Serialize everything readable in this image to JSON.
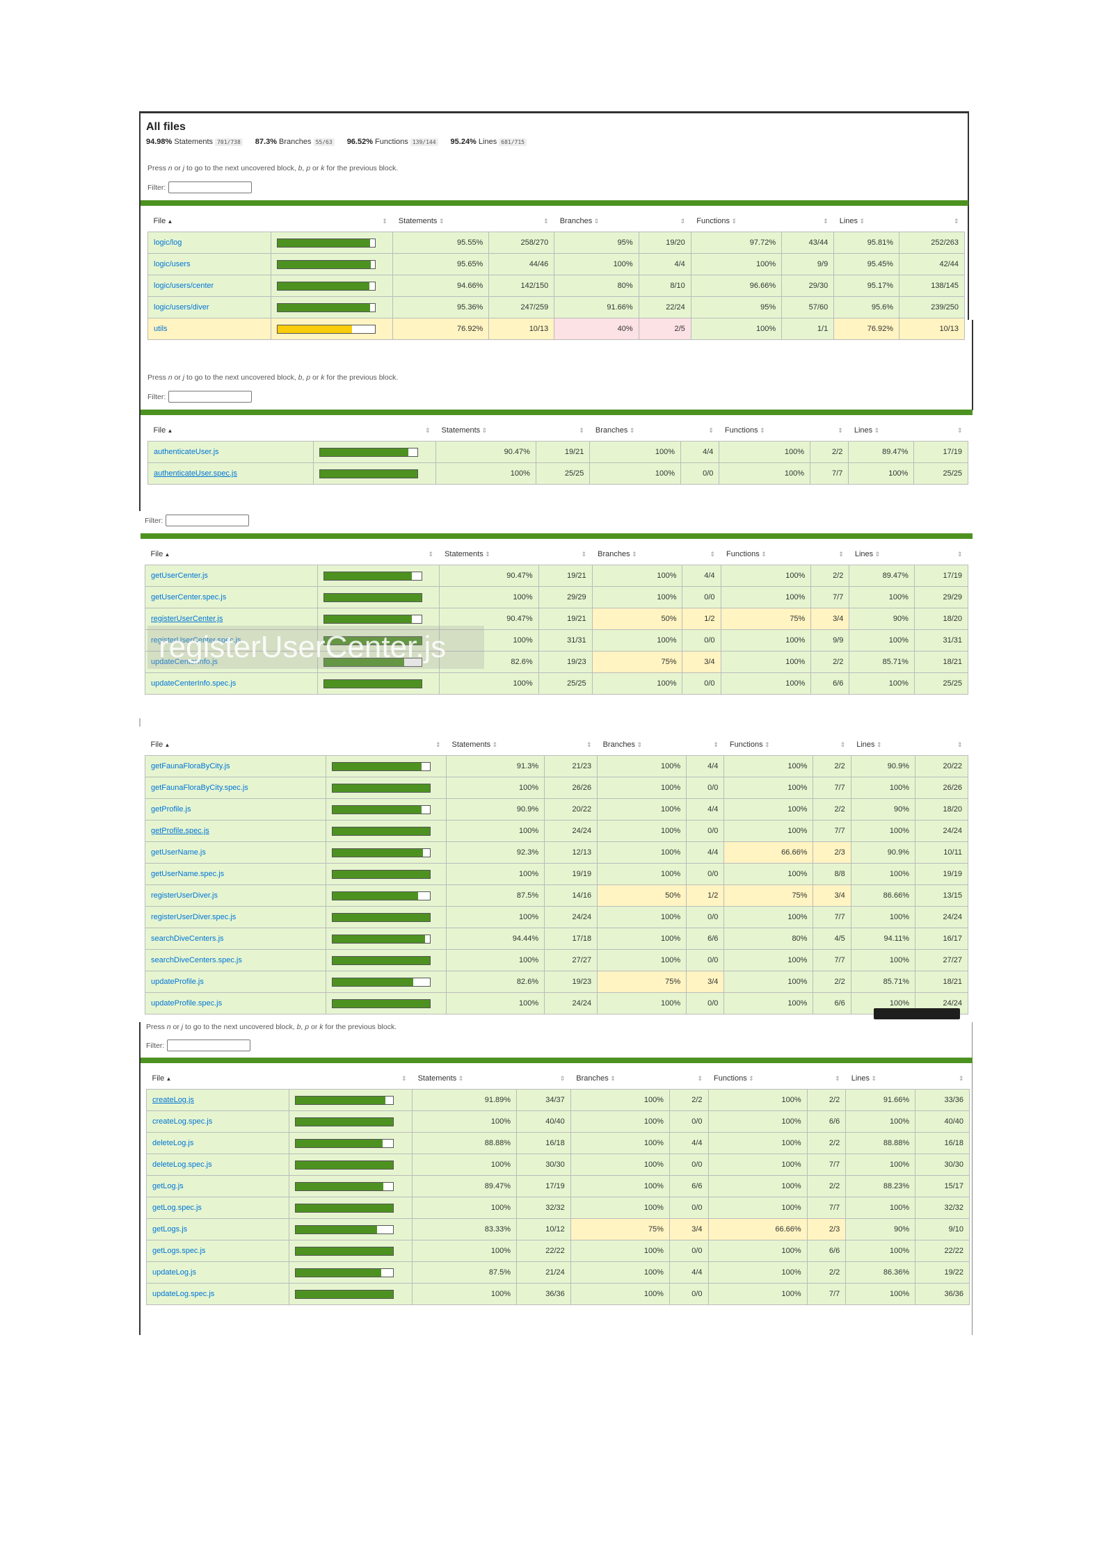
{
  "header": {
    "title": "All files",
    "summary": [
      {
        "pct": "94.98%",
        "label": "Statements",
        "fraction": "701/738"
      },
      {
        "pct": "87.3%",
        "label": "Branches",
        "fraction": "55/63"
      },
      {
        "pct": "96.52%",
        "label": "Functions",
        "fraction": "139/144"
      },
      {
        "pct": "95.24%",
        "label": "Lines",
        "fraction": "681/715"
      }
    ]
  },
  "hint": {
    "pre": "Press ",
    "n": "n",
    "or1": " or ",
    "j": "j",
    "mid": " to go to the next uncovered block, ",
    "b": "b",
    "c1": ", ",
    "p": "p",
    "or2": " or ",
    "k": "k",
    "post": " for the previous block."
  },
  "filter_label": "Filter:",
  "columns": {
    "file": "File",
    "statements": "Statements",
    "branches": "Branches",
    "functions": "Functions",
    "lines": "Lines",
    "sort_asc": "▲",
    "sort": "⇕"
  },
  "overlay_text": "registerUserCenter.js",
  "tables": [
    {
      "rows": [
        {
          "file": "logic/log",
          "level": "high",
          "fill": 0.9555,
          "stp": "95.55%",
          "sta": "258/270",
          "brp": "95%",
          "bra": "19/20",
          "fnp": "97.72%",
          "fna": "43/44",
          "lnp": "95.81%",
          "lna": "252/263",
          "cls": [
            "high",
            "high",
            "high",
            "high"
          ]
        },
        {
          "file": "logic/users",
          "level": "high",
          "fill": 0.9565,
          "stp": "95.65%",
          "sta": "44/46",
          "brp": "100%",
          "bra": "4/4",
          "fnp": "100%",
          "fna": "9/9",
          "lnp": "95.45%",
          "lna": "42/44",
          "cls": [
            "high",
            "high",
            "high",
            "high"
          ]
        },
        {
          "file": "logic/users/center",
          "level": "high",
          "fill": 0.9466,
          "stp": "94.66%",
          "sta": "142/150",
          "brp": "80%",
          "bra": "8/10",
          "fnp": "96.66%",
          "fna": "29/30",
          "lnp": "95.17%",
          "lna": "138/145",
          "cls": [
            "high",
            "high",
            "high",
            "high"
          ]
        },
        {
          "file": "logic/users/diver",
          "level": "high",
          "fill": 0.9536,
          "stp": "95.36%",
          "sta": "247/259",
          "brp": "91.66%",
          "bra": "22/24",
          "fnp": "95%",
          "fna": "57/60",
          "lnp": "95.6%",
          "lna": "239/250",
          "cls": [
            "high",
            "high",
            "high",
            "high"
          ]
        },
        {
          "file": "utils",
          "level": "medium",
          "fill": 0.7692,
          "stp": "76.92%",
          "sta": "10/13",
          "brp": "40%",
          "bra": "2/5",
          "fnp": "100%",
          "fna": "1/1",
          "lnp": "76.92%",
          "lna": "10/13",
          "cls": [
            "medium",
            "low",
            "high",
            "medium"
          ]
        }
      ]
    },
    {
      "rows": [
        {
          "file": "authenticateUser.js",
          "level": "high",
          "fill": 0.9047,
          "stp": "90.47%",
          "sta": "19/21",
          "brp": "100%",
          "bra": "4/4",
          "fnp": "100%",
          "fna": "2/2",
          "lnp": "89.47%",
          "lna": "17/19",
          "cls": [
            "high",
            "high",
            "high",
            "high"
          ]
        },
        {
          "file": "authenticateUser.spec.js",
          "u": true,
          "level": "high",
          "fill": 1,
          "stp": "100%",
          "sta": "25/25",
          "brp": "100%",
          "bra": "0/0",
          "fnp": "100%",
          "fna": "7/7",
          "lnp": "100%",
          "lna": "25/25",
          "cls": [
            "high",
            "high",
            "high",
            "high"
          ]
        }
      ]
    },
    {
      "rows": [
        {
          "file": "getUserCenter.js",
          "level": "high",
          "fill": 0.9047,
          "stp": "90.47%",
          "sta": "19/21",
          "brp": "100%",
          "bra": "4/4",
          "fnp": "100%",
          "fna": "2/2",
          "lnp": "89.47%",
          "lna": "17/19",
          "cls": [
            "high",
            "high",
            "high",
            "high"
          ]
        },
        {
          "file": "getUserCenter.spec.js",
          "level": "high",
          "fill": 1,
          "stp": "100%",
          "sta": "29/29",
          "brp": "100%",
          "bra": "0/0",
          "fnp": "100%",
          "fna": "7/7",
          "lnp": "100%",
          "lna": "29/29",
          "cls": [
            "high",
            "high",
            "high",
            "high"
          ]
        },
        {
          "file": "registerUserCenter.js",
          "u": true,
          "level": "high",
          "fill": 0.9047,
          "stp": "90.47%",
          "sta": "19/21",
          "brp": "50%",
          "bra": "1/2",
          "fnp": "75%",
          "fna": "3/4",
          "lnp": "90%",
          "lna": "18/20",
          "cls": [
            "high",
            "medium",
            "medium",
            "high"
          ]
        },
        {
          "file": "registerUserCenter.spec.js",
          "level": "high",
          "fill": 1,
          "stp": "100%",
          "sta": "31/31",
          "brp": "100%",
          "bra": "0/0",
          "fnp": "100%",
          "fna": "9/9",
          "lnp": "100%",
          "lna": "31/31",
          "cls": [
            "high",
            "high",
            "high",
            "high"
          ]
        },
        {
          "file": "updateCenterInfo.js",
          "level": "high",
          "fill": 0.826,
          "stp": "82.6%",
          "sta": "19/23",
          "brp": "75%",
          "bra": "3/4",
          "fnp": "100%",
          "fna": "2/2",
          "lnp": "85.71%",
          "lna": "18/21",
          "cls": [
            "high",
            "medium",
            "high",
            "high"
          ]
        },
        {
          "file": "updateCenterInfo.spec.js",
          "level": "high",
          "fill": 1,
          "stp": "100%",
          "sta": "25/25",
          "brp": "100%",
          "bra": "0/0",
          "fnp": "100%",
          "fna": "6/6",
          "lnp": "100%",
          "lna": "25/25",
          "cls": [
            "high",
            "high",
            "high",
            "high"
          ]
        }
      ]
    },
    {
      "rows": [
        {
          "file": "getFaunaFloraByCity.js",
          "level": "high",
          "fill": 0.913,
          "stp": "91.3%",
          "sta": "21/23",
          "brp": "100%",
          "bra": "4/4",
          "fnp": "100%",
          "fna": "2/2",
          "lnp": "90.9%",
          "lna": "20/22",
          "cls": [
            "high",
            "high",
            "high",
            "high"
          ]
        },
        {
          "file": "getFaunaFloraByCity.spec.js",
          "level": "high",
          "fill": 1,
          "stp": "100%",
          "sta": "26/26",
          "brp": "100%",
          "bra": "0/0",
          "fnp": "100%",
          "fna": "7/7",
          "lnp": "100%",
          "lna": "26/26",
          "cls": [
            "high",
            "high",
            "high",
            "high"
          ]
        },
        {
          "file": "getProfile.js",
          "level": "high",
          "fill": 0.909,
          "stp": "90.9%",
          "sta": "20/22",
          "brp": "100%",
          "bra": "4/4",
          "fnp": "100%",
          "fna": "2/2",
          "lnp": "90%",
          "lna": "18/20",
          "cls": [
            "high",
            "high",
            "high",
            "high"
          ]
        },
        {
          "file": "getProfile.spec.js",
          "u": true,
          "level": "high",
          "fill": 1,
          "stp": "100%",
          "sta": "24/24",
          "brp": "100%",
          "bra": "0/0",
          "fnp": "100%",
          "fna": "7/7",
          "lnp": "100%",
          "lna": "24/24",
          "cls": [
            "high",
            "high",
            "high",
            "high"
          ]
        },
        {
          "file": "getUserName.js",
          "level": "high",
          "fill": 0.923,
          "stp": "92.3%",
          "sta": "12/13",
          "brp": "100%",
          "bra": "4/4",
          "fnp": "66.66%",
          "fna": "2/3",
          "lnp": "90.9%",
          "lna": "10/11",
          "cls": [
            "high",
            "high",
            "medium",
            "high"
          ]
        },
        {
          "file": "getUserName.spec.js",
          "level": "high",
          "fill": 1,
          "stp": "100%",
          "sta": "19/19",
          "brp": "100%",
          "bra": "0/0",
          "fnp": "100%",
          "fna": "8/8",
          "lnp": "100%",
          "lna": "19/19",
          "cls": [
            "high",
            "high",
            "high",
            "high"
          ]
        },
        {
          "file": "registerUserDiver.js",
          "level": "high",
          "fill": 0.875,
          "stp": "87.5%",
          "sta": "14/16",
          "brp": "50%",
          "bra": "1/2",
          "fnp": "75%",
          "fna": "3/4",
          "lnp": "86.66%",
          "lna": "13/15",
          "cls": [
            "high",
            "medium",
            "medium",
            "high"
          ]
        },
        {
          "file": "registerUserDiver.spec.js",
          "level": "high",
          "fill": 1,
          "stp": "100%",
          "sta": "24/24",
          "brp": "100%",
          "bra": "0/0",
          "fnp": "100%",
          "fna": "7/7",
          "lnp": "100%",
          "lna": "24/24",
          "cls": [
            "high",
            "high",
            "high",
            "high"
          ]
        },
        {
          "file": "searchDiveCenters.js",
          "level": "high",
          "fill": 0.9444,
          "stp": "94.44%",
          "sta": "17/18",
          "brp": "100%",
          "bra": "6/6",
          "fnp": "80%",
          "fna": "4/5",
          "lnp": "94.11%",
          "lna": "16/17",
          "cls": [
            "high",
            "high",
            "high",
            "high"
          ]
        },
        {
          "file": "searchDiveCenters.spec.js",
          "level": "high",
          "fill": 1,
          "stp": "100%",
          "sta": "27/27",
          "brp": "100%",
          "bra": "0/0",
          "fnp": "100%",
          "fna": "7/7",
          "lnp": "100%",
          "lna": "27/27",
          "cls": [
            "high",
            "high",
            "high",
            "high"
          ]
        },
        {
          "file": "updateProfile.js",
          "level": "high",
          "fill": 0.826,
          "stp": "82.6%",
          "sta": "19/23",
          "brp": "75%",
          "bra": "3/4",
          "fnp": "100%",
          "fna": "2/2",
          "lnp": "85.71%",
          "lna": "18/21",
          "cls": [
            "high",
            "medium",
            "high",
            "high"
          ]
        },
        {
          "file": "updateProfile.spec.js",
          "level": "high",
          "fill": 1,
          "stp": "100%",
          "sta": "24/24",
          "brp": "100%",
          "bra": "0/0",
          "fnp": "100%",
          "fna": "6/6",
          "lnp": "100%",
          "lna": "24/24",
          "cls": [
            "high",
            "high",
            "high",
            "high"
          ]
        }
      ]
    },
    {
      "rows": [
        {
          "file": "createLog.js",
          "u": true,
          "level": "high",
          "fill": 0.9189,
          "stp": "91.89%",
          "sta": "34/37",
          "brp": "100%",
          "bra": "2/2",
          "fnp": "100%",
          "fna": "2/2",
          "lnp": "91.66%",
          "lna": "33/36",
          "cls": [
            "high",
            "high",
            "high",
            "high"
          ]
        },
        {
          "file": "createLog.spec.js",
          "level": "high",
          "fill": 1,
          "stp": "100%",
          "sta": "40/40",
          "brp": "100%",
          "bra": "0/0",
          "fnp": "100%",
          "fna": "6/6",
          "lnp": "100%",
          "lna": "40/40",
          "cls": [
            "high",
            "high",
            "high",
            "high"
          ]
        },
        {
          "file": "deleteLog.js",
          "level": "high",
          "fill": 0.8888,
          "stp": "88.88%",
          "sta": "16/18",
          "brp": "100%",
          "bra": "4/4",
          "fnp": "100%",
          "fna": "2/2",
          "lnp": "88.88%",
          "lna": "16/18",
          "cls": [
            "high",
            "high",
            "high",
            "high"
          ]
        },
        {
          "file": "deleteLog.spec.js",
          "level": "high",
          "fill": 1,
          "stp": "100%",
          "sta": "30/30",
          "brp": "100%",
          "bra": "0/0",
          "fnp": "100%",
          "fna": "7/7",
          "lnp": "100%",
          "lna": "30/30",
          "cls": [
            "high",
            "high",
            "high",
            "high"
          ]
        },
        {
          "file": "getLog.js",
          "level": "high",
          "fill": 0.8947,
          "stp": "89.47%",
          "sta": "17/19",
          "brp": "100%",
          "bra": "6/6",
          "fnp": "100%",
          "fna": "2/2",
          "lnp": "88.23%",
          "lna": "15/17",
          "cls": [
            "high",
            "high",
            "high",
            "high"
          ]
        },
        {
          "file": "getLog.spec.js",
          "level": "high",
          "fill": 1,
          "stp": "100%",
          "sta": "32/32",
          "brp": "100%",
          "bra": "0/0",
          "fnp": "100%",
          "fna": "7/7",
          "lnp": "100%",
          "lna": "32/32",
          "cls": [
            "high",
            "high",
            "high",
            "high"
          ]
        },
        {
          "file": "getLogs.js",
          "level": "high",
          "fill": 0.8333,
          "stp": "83.33%",
          "sta": "10/12",
          "brp": "75%",
          "bra": "3/4",
          "fnp": "66.66%",
          "fna": "2/3",
          "lnp": "90%",
          "lna": "9/10",
          "cls": [
            "high",
            "medium",
            "medium",
            "high"
          ]
        },
        {
          "file": "getLogs.spec.js",
          "level": "high",
          "fill": 1,
          "stp": "100%",
          "sta": "22/22",
          "brp": "100%",
          "bra": "0/0",
          "fnp": "100%",
          "fna": "6/6",
          "lnp": "100%",
          "lna": "22/22",
          "cls": [
            "high",
            "high",
            "high",
            "high"
          ]
        },
        {
          "file": "updateLog.js",
          "level": "high",
          "fill": 0.875,
          "stp": "87.5%",
          "sta": "21/24",
          "brp": "100%",
          "bra": "4/4",
          "fnp": "100%",
          "fna": "2/2",
          "lnp": "86.36%",
          "lna": "19/22",
          "cls": [
            "high",
            "high",
            "high",
            "high"
          ]
        },
        {
          "file": "updateLog.spec.js",
          "level": "high",
          "fill": 1,
          "stp": "100%",
          "sta": "36/36",
          "brp": "100%",
          "bra": "0/0",
          "fnp": "100%",
          "fna": "7/7",
          "lnp": "100%",
          "lna": "36/36",
          "cls": [
            "high",
            "high",
            "high",
            "high"
          ]
        }
      ]
    }
  ]
}
